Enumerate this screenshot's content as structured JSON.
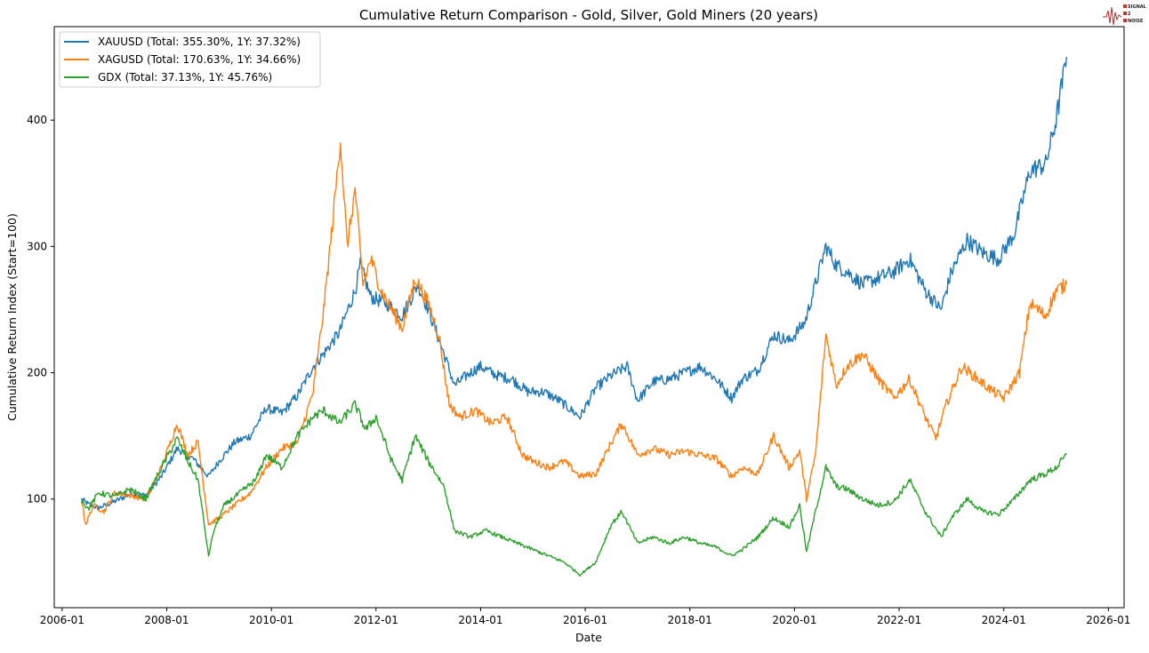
{
  "chart_data": {
    "type": "line",
    "title": "Cumulative Return Comparison - Gold, Silver, Gold Miners (20 years)",
    "xlabel": "Date",
    "ylabel": "Cumulative Return Index (Start=100)",
    "xlim": [
      2005.85,
      2026.3
    ],
    "ylim": [
      14,
      474
    ],
    "x_ticks": [
      2006.0,
      2008.0,
      2010.0,
      2012.0,
      2014.0,
      2016.0,
      2018.0,
      2020.0,
      2022.0,
      2024.0,
      2026.0
    ],
    "x_tick_labels": [
      "2006-01",
      "2008-01",
      "2010-01",
      "2012-01",
      "2014-01",
      "2016-01",
      "2018-01",
      "2020-01",
      "2022-01",
      "2024-01",
      "2026-01"
    ],
    "y_ticks": [
      100,
      200,
      300,
      400
    ],
    "y_tick_labels": [
      "100",
      "200",
      "300",
      "400"
    ],
    "grid": false,
    "legend_position": "top-left",
    "series": [
      {
        "name": "XAUUSD (Total: 355.30%, 1Y: 37.32%)",
        "color": "#1f77b4",
        "x": [
          2006.37,
          2006.5,
          2006.7,
          2007.0,
          2007.3,
          2007.6,
          2007.9,
          2008.2,
          2008.5,
          2008.8,
          2009.0,
          2009.3,
          2009.6,
          2009.9,
          2010.2,
          2010.5,
          2010.8,
          2011.0,
          2011.3,
          2011.6,
          2011.7,
          2011.9,
          2012.2,
          2012.5,
          2012.8,
          2013.0,
          2013.3,
          2013.5,
          2013.8,
          2014.0,
          2014.3,
          2014.6,
          2014.9,
          2015.2,
          2015.5,
          2015.9,
          2016.2,
          2016.5,
          2016.8,
          2017.0,
          2017.3,
          2017.6,
          2017.9,
          2018.2,
          2018.5,
          2018.8,
          2019.0,
          2019.3,
          2019.6,
          2019.9,
          2020.2,
          2020.6,
          2020.8,
          2021.0,
          2021.3,
          2021.6,
          2021.9,
          2022.2,
          2022.5,
          2022.8,
          2023.0,
          2023.3,
          2023.6,
          2023.9,
          2024.2,
          2024.5,
          2024.8,
          2025.0,
          2025.2
        ],
        "y": [
          100,
          96,
          93,
          98,
          104,
          103,
          118,
          140,
          132,
          118,
          130,
          145,
          150,
          172,
          168,
          182,
          205,
          215,
          232,
          265,
          285,
          260,
          255,
          245,
          270,
          250,
          215,
          190,
          200,
          205,
          198,
          195,
          185,
          185,
          178,
          165,
          188,
          198,
          205,
          178,
          193,
          195,
          200,
          205,
          195,
          180,
          195,
          202,
          230,
          225,
          240,
          300,
          285,
          280,
          270,
          275,
          280,
          290,
          265,
          250,
          280,
          305,
          295,
          290,
          310,
          360,
          365,
          400,
          450
        ]
      },
      {
        "name": "XAGUSD (Total: 170.63%, 1Y: 34.66%)",
        "color": "#ff7f0e",
        "x": [
          2006.37,
          2006.45,
          2006.6,
          2006.8,
          2007.0,
          2007.3,
          2007.6,
          2007.9,
          2008.2,
          2008.4,
          2008.6,
          2008.8,
          2009.0,
          2009.3,
          2009.6,
          2009.9,
          2010.2,
          2010.5,
          2010.8,
          2011.0,
          2011.15,
          2011.32,
          2011.45,
          2011.6,
          2011.75,
          2011.9,
          2012.1,
          2012.3,
          2012.5,
          2012.75,
          2013.0,
          2013.2,
          2013.4,
          2013.6,
          2013.9,
          2014.2,
          2014.5,
          2014.8,
          2015.0,
          2015.3,
          2015.6,
          2015.9,
          2016.2,
          2016.5,
          2016.7,
          2017.0,
          2017.3,
          2017.6,
          2017.9,
          2018.2,
          2018.5,
          2018.8,
          2019.0,
          2019.3,
          2019.6,
          2019.9,
          2020.1,
          2020.23,
          2020.4,
          2020.6,
          2020.8,
          2021.0,
          2021.3,
          2021.6,
          2021.9,
          2022.2,
          2022.5,
          2022.7,
          2022.9,
          2023.2,
          2023.5,
          2023.8,
          2024.0,
          2024.3,
          2024.5,
          2024.8,
          2025.0,
          2025.2
        ],
        "y": [
          100,
          80,
          95,
          90,
          105,
          103,
          100,
          125,
          160,
          135,
          145,
          80,
          85,
          95,
          105,
          125,
          140,
          145,
          185,
          250,
          310,
          385,
          300,
          345,
          270,
          290,
          265,
          250,
          235,
          275,
          255,
          230,
          175,
          165,
          170,
          160,
          165,
          135,
          130,
          125,
          130,
          118,
          120,
          145,
          160,
          135,
          140,
          135,
          138,
          135,
          132,
          118,
          125,
          120,
          150,
          125,
          138,
          100,
          135,
          230,
          190,
          205,
          215,
          195,
          180,
          195,
          165,
          148,
          175,
          205,
          195,
          185,
          180,
          200,
          255,
          245,
          265,
          270
        ]
      },
      {
        "name": "GDX (Total: 37.13%, 1Y: 45.76%)",
        "color": "#2ca02c",
        "x": [
          2006.37,
          2006.5,
          2006.7,
          2007.0,
          2007.3,
          2007.6,
          2007.9,
          2008.2,
          2008.4,
          2008.6,
          2008.8,
          2008.9,
          2009.1,
          2009.4,
          2009.7,
          2009.9,
          2010.2,
          2010.5,
          2010.8,
          2011.0,
          2011.3,
          2011.6,
          2011.8,
          2012.0,
          2012.3,
          2012.5,
          2012.75,
          2013.0,
          2013.3,
          2013.5,
          2013.8,
          2014.1,
          2014.4,
          2014.7,
          2015.0,
          2015.3,
          2015.6,
          2015.9,
          2016.2,
          2016.5,
          2016.7,
          2017.0,
          2017.3,
          2017.6,
          2017.9,
          2018.2,
          2018.5,
          2018.8,
          2019.0,
          2019.3,
          2019.6,
          2019.9,
          2020.1,
          2020.23,
          2020.4,
          2020.6,
          2020.8,
          2021.0,
          2021.3,
          2021.6,
          2021.9,
          2022.2,
          2022.5,
          2022.8,
          2023.0,
          2023.3,
          2023.6,
          2023.9,
          2024.2,
          2024.5,
          2024.8,
          2025.0,
          2025.2
        ],
        "y": [
          100,
          92,
          105,
          102,
          108,
          100,
          125,
          148,
          130,
          115,
          55,
          75,
          95,
          105,
          115,
          135,
          125,
          150,
          165,
          170,
          160,
          175,
          155,
          165,
          130,
          115,
          150,
          130,
          110,
          75,
          70,
          75,
          70,
          65,
          60,
          55,
          50,
          40,
          50,
          80,
          90,
          65,
          70,
          65,
          70,
          65,
          62,
          55,
          60,
          70,
          85,
          78,
          95,
          58,
          90,
          125,
          110,
          108,
          100,
          95,
          98,
          115,
          90,
          70,
          85,
          100,
          90,
          88,
          100,
          115,
          120,
          125,
          135
        ]
      }
    ]
  },
  "logo": {
    "line1": "SIGNAL",
    "line2": "2",
    "line3": "NOISE"
  }
}
